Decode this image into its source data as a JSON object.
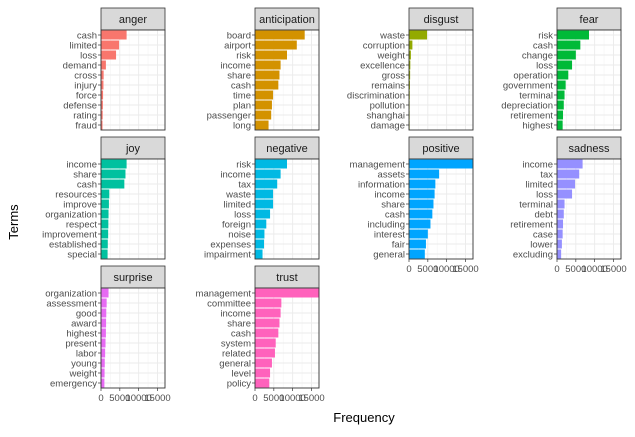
{
  "axes": {
    "xlabel": "Frequency",
    "ylabel": "Terms"
  },
  "chart_data": {
    "type": "bar",
    "orientation": "horizontal",
    "layout": "facet-grid",
    "xlabel": "Frequency",
    "ylabel": "Terms",
    "xlim": [
      0,
      17000
    ],
    "x_ticks": [
      0,
      5000,
      10000,
      15000
    ],
    "x_tick_labels": [
      "0",
      "5000",
      "10000",
      "15000"
    ],
    "grid": true,
    "legend": "none",
    "facets": [
      {
        "name": "anger",
        "color": "#F8766D",
        "terms": [
          "cash",
          "limited",
          "loss",
          "demand",
          "cross",
          "injury",
          "force",
          "defense",
          "rating",
          "fraud"
        ],
        "values": [
          6800,
          4800,
          4000,
          1300,
          700,
          650,
          550,
          500,
          450,
          400
        ]
      },
      {
        "name": "anticipation",
        "color": "#D39200",
        "terms": [
          "board",
          "airport",
          "risk",
          "income",
          "share",
          "cash",
          "time",
          "plan",
          "passenger",
          "long"
        ],
        "values": [
          13200,
          11100,
          8500,
          6800,
          6500,
          6200,
          4800,
          4500,
          4300,
          3600
        ]
      },
      {
        "name": "disgust",
        "color": "#93AA00",
        "terms": [
          "waste",
          "corruption",
          "weight",
          "excellence",
          "gross",
          "remains",
          "discrimination",
          "pollution",
          "shanghai",
          "damage"
        ],
        "values": [
          4800,
          900,
          500,
          350,
          300,
          250,
          200,
          150,
          120,
          100
        ]
      },
      {
        "name": "fear",
        "color": "#00BA38",
        "terms": [
          "risk",
          "cash",
          "change",
          "loss",
          "operation",
          "government",
          "terminal",
          "depreciation",
          "retirement",
          "highest"
        ],
        "values": [
          8500,
          6200,
          5000,
          4000,
          3000,
          2300,
          2000,
          1800,
          1600,
          1500
        ]
      },
      {
        "name": "joy",
        "color": "#00C19F",
        "terms": [
          "income",
          "share",
          "cash",
          "resources",
          "improve",
          "organization",
          "respect",
          "improvement",
          "established",
          "special"
        ],
        "values": [
          6800,
          6500,
          6200,
          2200,
          2100,
          2000,
          1950,
          1900,
          1800,
          1750
        ]
      },
      {
        "name": "negative",
        "color": "#00B9E3",
        "terms": [
          "risk",
          "income",
          "tax",
          "waste",
          "limited",
          "loss",
          "foreign",
          "noise",
          "expenses",
          "impairment"
        ],
        "values": [
          8500,
          6800,
          5900,
          4800,
          4800,
          4000,
          3000,
          2500,
          2400,
          2000
        ]
      },
      {
        "name": "positive",
        "color": "#00A5FF",
        "terms": [
          "management",
          "assets",
          "information",
          "income",
          "share",
          "cash",
          "including",
          "interest",
          "fair",
          "general"
        ],
        "values": [
          17000,
          8000,
          7000,
          6800,
          6500,
          6200,
          5700,
          5000,
          4500,
          4200
        ]
      },
      {
        "name": "sadness",
        "color": "#9590FF",
        "terms": [
          "income",
          "tax",
          "limited",
          "loss",
          "terminal",
          "debt",
          "retirement",
          "case",
          "lower",
          "excluding"
        ],
        "values": [
          6800,
          5900,
          4800,
          4000,
          2000,
          1800,
          1600,
          1500,
          1300,
          1100
        ]
      },
      {
        "name": "surprise",
        "color": "#E76BF3",
        "terms": [
          "organization",
          "assessment",
          "good",
          "award",
          "highest",
          "present",
          "labor",
          "young",
          "weight",
          "emergency"
        ],
        "values": [
          2000,
          1500,
          1400,
          1350,
          1300,
          1200,
          1100,
          1000,
          950,
          900
        ]
      },
      {
        "name": "trust",
        "color": "#FF62BC",
        "terms": [
          "management",
          "committee",
          "income",
          "share",
          "cash",
          "system",
          "related",
          "general",
          "level",
          "policy"
        ],
        "values": [
          17000,
          7000,
          6800,
          6500,
          6200,
          5500,
          5300,
          4500,
          4000,
          3800
        ]
      }
    ]
  }
}
